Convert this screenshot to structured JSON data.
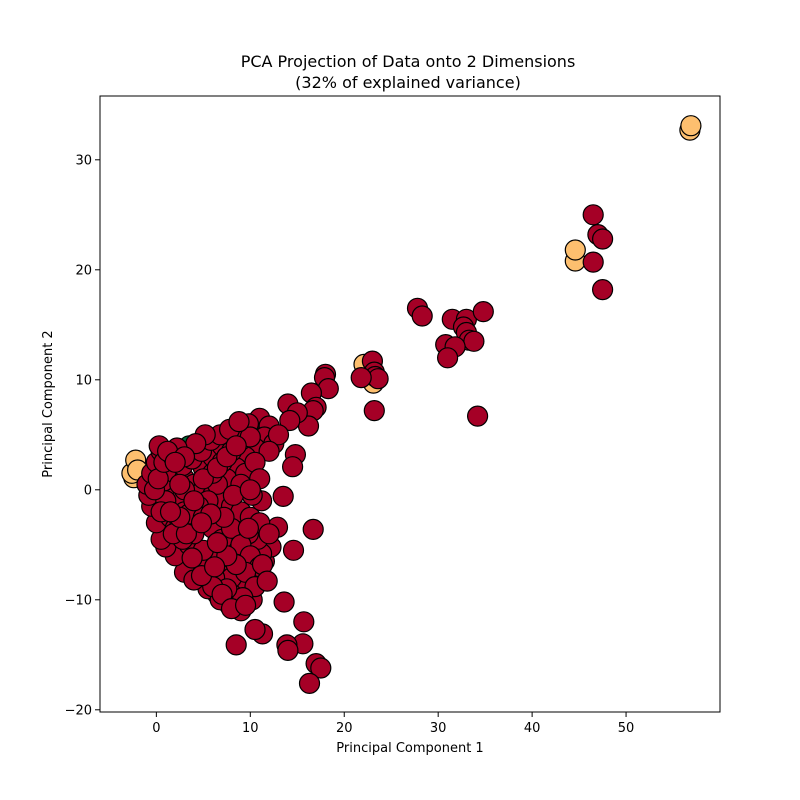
{
  "chart_data": {
    "type": "scatter",
    "title": "PCA Projection of Data onto 2 Dimensions",
    "subtitle": "(32% of explained variance)",
    "xlabel": "Principal Component 1",
    "ylabel": "Principal Component 2",
    "xlim": [
      -6,
      60
    ],
    "ylim": [
      -20.2,
      35.8
    ],
    "xticks": [
      0,
      10,
      20,
      30,
      40,
      50
    ],
    "xtick_labels": [
      "0",
      "10",
      "20",
      "30",
      "40",
      "50"
    ],
    "yticks": [
      -20,
      -10,
      0,
      10,
      20,
      30
    ],
    "ytick_labels": [
      "−20",
      "−10",
      "0",
      "10",
      "20",
      "30"
    ],
    "grid": false,
    "legend": false,
    "marker": "circle",
    "edge_color": "#000000",
    "colors": {
      "red": "#a50026",
      "orange": "#fdbf6f",
      "green": "#006837"
    },
    "series": [
      {
        "color": "#fdbf6f",
        "points": [
          [
            56.8,
            32.7
          ],
          [
            56.9,
            33.1
          ],
          [
            44.6,
            20.8
          ],
          [
            44.6,
            21.8
          ],
          [
            22.1,
            11.4
          ],
          [
            22.9,
            10.0
          ],
          [
            23.1,
            9.7
          ],
          [
            -2.4,
            1.1
          ],
          [
            -2.6,
            1.5
          ],
          [
            -1.9,
            2.1
          ],
          [
            -2.2,
            2.7
          ],
          [
            -2.0,
            1.8
          ]
        ]
      },
      {
        "color": "#006837",
        "points": [
          [
            3.5,
            4.0
          ],
          [
            4.2,
            3.8
          ],
          [
            1.2,
            3.2
          ]
        ]
      },
      {
        "color": "#a50026",
        "points": [
          [
            46.5,
            25.0
          ],
          [
            47.0,
            23.2
          ],
          [
            47.5,
            22.8
          ],
          [
            46.5,
            20.7
          ],
          [
            47.5,
            18.2
          ],
          [
            27.8,
            16.5
          ],
          [
            28.3,
            15.8
          ],
          [
            31.5,
            15.5
          ],
          [
            33.0,
            15.5
          ],
          [
            32.7,
            14.8
          ],
          [
            34.8,
            16.2
          ],
          [
            33.0,
            14.3
          ],
          [
            33.3,
            13.6
          ],
          [
            33.8,
            13.5
          ],
          [
            30.8,
            13.2
          ],
          [
            31.8,
            13.0
          ],
          [
            31.0,
            12.0
          ],
          [
            34.2,
            6.7
          ],
          [
            23.0,
            11.7
          ],
          [
            23.2,
            10.7
          ],
          [
            23.3,
            10.3
          ],
          [
            23.6,
            10.1
          ],
          [
            21.8,
            10.2
          ],
          [
            23.2,
            7.2
          ],
          [
            18.0,
            10.5
          ],
          [
            17.9,
            10.2
          ],
          [
            18.3,
            9.2
          ],
          [
            16.5,
            8.8
          ],
          [
            17.0,
            7.5
          ],
          [
            16.7,
            7.2
          ],
          [
            16.2,
            5.8
          ],
          [
            14.0,
            7.8
          ],
          [
            15.0,
            7.0
          ],
          [
            14.2,
            6.3
          ],
          [
            14.8,
            3.2
          ],
          [
            14.5,
            2.1
          ],
          [
            13.5,
            -0.6
          ],
          [
            16.7,
            -3.6
          ],
          [
            14.6,
            -5.5
          ],
          [
            12.9,
            -3.4
          ],
          [
            13.6,
            -10.2
          ],
          [
            15.7,
            -12.0
          ],
          [
            15.6,
            -14.0
          ],
          [
            13.9,
            -14.1
          ],
          [
            14.0,
            -14.6
          ],
          [
            11.3,
            -13.1
          ],
          [
            10.5,
            -12.7
          ],
          [
            8.5,
            -14.1
          ],
          [
            17.0,
            -15.8
          ],
          [
            17.5,
            -16.2
          ],
          [
            16.3,
            -17.6
          ],
          [
            11.0,
            -8.0
          ],
          [
            11.5,
            -6.5
          ],
          [
            10.2,
            -10.0
          ],
          [
            9.0,
            -11.0
          ],
          [
            7.8,
            -10.5
          ],
          [
            6.5,
            -9.5
          ],
          [
            5.5,
            -9.0
          ],
          [
            8.5,
            -9.3
          ],
          [
            9.5,
            -8.2
          ],
          [
            12.2,
            -5.2
          ],
          [
            11.2,
            -5.8
          ],
          [
            10.8,
            -4.5
          ],
          [
            9.8,
            -4.0
          ],
          [
            8.0,
            -5.2
          ],
          [
            6.0,
            -6.5
          ],
          [
            4.5,
            -6.8
          ],
          [
            3.0,
            -7.5
          ],
          [
            2.0,
            -6.0
          ],
          [
            3.5,
            -5.0
          ],
          [
            5.0,
            -5.5
          ],
          [
            7.0,
            -7.8
          ],
          [
            8.0,
            -8.0
          ],
          [
            4.0,
            -8.2
          ],
          [
            6.2,
            -8.0
          ],
          [
            1.0,
            -5.2
          ],
          [
            0.5,
            -4.5
          ],
          [
            0.0,
            -3.0
          ],
          [
            -0.5,
            -1.5
          ],
          [
            -0.8,
            -0.5
          ],
          [
            -1.0,
            0.5
          ],
          [
            -0.5,
            1.5
          ],
          [
            0.0,
            2.5
          ],
          [
            0.5,
            3.5
          ],
          [
            0.3,
            4.0
          ],
          [
            1.0,
            2.0
          ],
          [
            1.5,
            1.0
          ],
          [
            2.0,
            0.0
          ],
          [
            2.5,
            -1.0
          ],
          [
            3.0,
            -2.0
          ],
          [
            3.5,
            -3.0
          ],
          [
            4.0,
            -4.0
          ],
          [
            1.5,
            -2.5
          ],
          [
            2.0,
            -3.5
          ],
          [
            2.5,
            -2.8
          ],
          [
            0.8,
            0.8
          ],
          [
            1.0,
            -1.0
          ],
          [
            2.0,
            1.5
          ],
          [
            3.0,
            1.0
          ],
          [
            4.0,
            0.5
          ],
          [
            5.0,
            0.0
          ],
          [
            6.0,
            -0.5
          ],
          [
            7.0,
            -1.0
          ],
          [
            8.0,
            -1.5
          ],
          [
            9.0,
            -2.0
          ],
          [
            10.0,
            -2.5
          ],
          [
            11.0,
            -3.0
          ],
          [
            5.0,
            2.0
          ],
          [
            6.0,
            3.0
          ],
          [
            7.0,
            4.0
          ],
          [
            8.0,
            5.0
          ],
          [
            9.0,
            5.5
          ],
          [
            10.0,
            6.0
          ],
          [
            11.0,
            6.5
          ],
          [
            12.0,
            5.8
          ],
          [
            11.5,
            4.8
          ],
          [
            10.5,
            3.8
          ],
          [
            9.5,
            3.0
          ],
          [
            8.5,
            2.0
          ],
          [
            7.5,
            1.0
          ],
          [
            6.5,
            0.5
          ],
          [
            5.5,
            -1.0
          ],
          [
            4.5,
            -1.5
          ],
          [
            3.5,
            -2.2
          ],
          [
            12.5,
            4.2
          ],
          [
            13.0,
            5.0
          ],
          [
            12.0,
            3.5
          ],
          [
            9.8,
            6.0
          ],
          [
            9.0,
            4.5
          ],
          [
            10.0,
            4.8
          ],
          [
            8.0,
            3.5
          ],
          [
            7.0,
            2.5
          ],
          [
            6.0,
            1.5
          ],
          [
            5.0,
            -2.5
          ],
          [
            6.0,
            -3.5
          ],
          [
            7.0,
            -4.5
          ],
          [
            8.0,
            -3.5
          ],
          [
            9.0,
            -5.0
          ],
          [
            10.0,
            -6.0
          ],
          [
            11.0,
            -7.0
          ],
          [
            9.5,
            -7.5
          ],
          [
            8.5,
            -6.8
          ],
          [
            7.5,
            -6.0
          ],
          [
            6.5,
            -4.8
          ],
          [
            10.5,
            -8.8
          ],
          [
            11.3,
            -6.8
          ],
          [
            9.2,
            -9.8
          ],
          [
            6.8,
            -10.0
          ],
          [
            7.5,
            -9.0
          ],
          [
            3.8,
            -6.2
          ],
          [
            2.8,
            -4.5
          ],
          [
            1.8,
            -4.0
          ],
          [
            0.5,
            -2.0
          ],
          [
            -0.2,
            0.0
          ],
          [
            0.2,
            1.0
          ],
          [
            0.8,
            2.5
          ],
          [
            1.8,
            3.0
          ],
          [
            2.8,
            2.2
          ],
          [
            3.8,
            2.8
          ],
          [
            4.8,
            3.5
          ],
          [
            5.8,
            4.5
          ],
          [
            6.8,
            5.0
          ],
          [
            7.8,
            5.5
          ],
          [
            5.2,
            5.0
          ],
          [
            4.2,
            4.2
          ],
          [
            2.2,
            3.8
          ],
          [
            1.2,
            3.5
          ],
          [
            6.0,
            -8.8
          ],
          [
            4.8,
            -7.8
          ],
          [
            3.2,
            -4.0
          ],
          [
            2.5,
            -2.5
          ],
          [
            1.5,
            -2.0
          ],
          [
            3.0,
            0.0
          ],
          [
            4.0,
            -1.0
          ],
          [
            5.0,
            1.0
          ],
          [
            6.5,
            2.0
          ],
          [
            7.5,
            3.0
          ],
          [
            8.5,
            4.0
          ],
          [
            9.5,
            1.5
          ],
          [
            10.5,
            2.5
          ],
          [
            11.0,
            1.0
          ],
          [
            11.2,
            -1.0
          ],
          [
            10.2,
            -0.5
          ],
          [
            9.0,
            0.5
          ],
          [
            8.2,
            -0.5
          ],
          [
            7.2,
            -2.5
          ],
          [
            5.8,
            -2.2
          ],
          [
            4.8,
            -3.0
          ],
          [
            6.2,
            -7.0
          ],
          [
            9.8,
            -3.5
          ],
          [
            3.0,
            3.0
          ],
          [
            2.0,
            2.5
          ],
          [
            8.8,
            6.2
          ],
          [
            7.0,
            -9.5
          ],
          [
            8.0,
            -10.8
          ],
          [
            9.5,
            -10.5
          ],
          [
            11.8,
            -8.3
          ],
          [
            12.0,
            -4.0
          ],
          [
            10.0,
            0.0
          ],
          [
            2.5,
            0.5
          ]
        ]
      }
    ]
  }
}
